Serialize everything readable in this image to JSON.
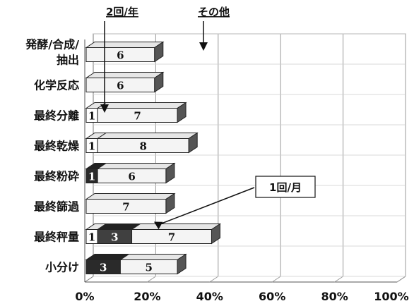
{
  "chart_data": {
    "type": "bar",
    "orientation": "horizontal",
    "stacked": true,
    "percent_axis": true,
    "categories": [
      "発酵/合成/抽出",
      "化学反応",
      "最終分離",
      "最終乾燥",
      "最終粉砕",
      "最終篩過",
      "最終秤量",
      "小分け"
    ],
    "category_lines": [
      [
        "発酵/合成/",
        "抽出"
      ],
      [
        "化学反応"
      ],
      [
        "最終分離"
      ],
      [
        "最終乾燥"
      ],
      [
        "最終粉砕"
      ],
      [
        "最終篩過"
      ],
      [
        "最終秤量"
      ],
      [
        "小分け"
      ]
    ],
    "series": [
      {
        "color": "#2a2a2a",
        "values": [
          0,
          0,
          0,
          0,
          1,
          0,
          0,
          3
        ],
        "labels": [
          "",
          "",
          "",
          "",
          "1",
          "",
          "",
          "3"
        ]
      },
      {
        "color": "#ffffff",
        "values": [
          0,
          0,
          1,
          1,
          0,
          0,
          1,
          0
        ],
        "labels": [
          "",
          "",
          "1",
          "1",
          "",
          "",
          "1",
          ""
        ]
      },
      {
        "color": "#404040",
        "values": [
          0,
          0,
          0,
          0,
          0,
          0,
          3,
          0
        ],
        "labels": [
          "",
          "",
          "",
          "",
          "",
          "",
          "3",
          ""
        ]
      },
      {
        "color": "#f4f4f4",
        "values": [
          6,
          6,
          7,
          8,
          6,
          7,
          7,
          5
        ],
        "labels": [
          "6",
          "6",
          "7",
          "8",
          "6",
          "7",
          "7",
          "5"
        ]
      }
    ],
    "xlim": [
      0,
      100
    ],
    "xticks": [
      "0%",
      "20%",
      "40%",
      "60%",
      "80%",
      "100%"
    ],
    "annotations": [
      {
        "text": "2回/年"
      },
      {
        "text": "その他"
      },
      {
        "text": "1回/月"
      }
    ],
    "grid": true
  }
}
